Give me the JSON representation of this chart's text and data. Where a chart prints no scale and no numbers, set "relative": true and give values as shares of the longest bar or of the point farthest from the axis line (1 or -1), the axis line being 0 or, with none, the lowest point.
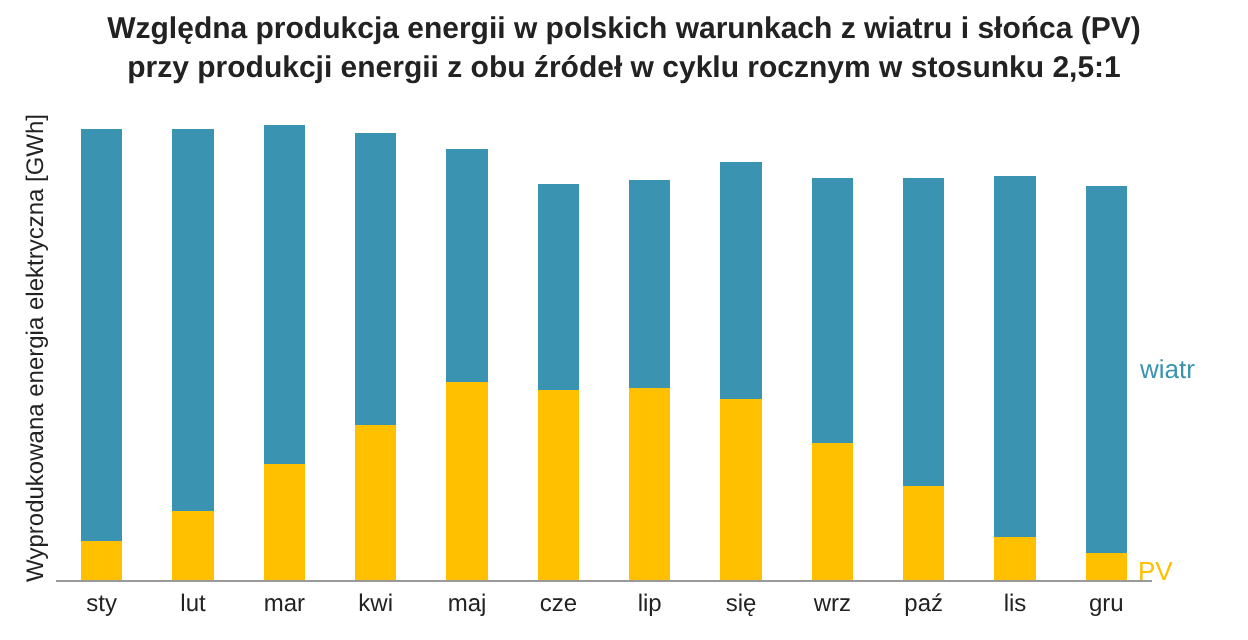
{
  "chart_data": {
    "type": "bar",
    "title": "Względna produkcja energii w polskich warunkach z wiatru i słońca (PV)\nprzy produkcji energii z obu źródeł w cyklu rocznym w stosunku 2,5:1",
    "ylabel": "Wyprodukowana energia elektryczna [GWh]",
    "relative": true,
    "stacked": true,
    "legend": false,
    "categories": [
      "sty",
      "lut",
      "mar",
      "kwi",
      "maj",
      "cze",
      "lip",
      "się",
      "wrz",
      "paź",
      "lis",
      "gru"
    ],
    "series": [
      {
        "name": "PV",
        "color": "#ffc000",
        "values": [
          0.086,
          0.151,
          0.254,
          0.341,
          0.435,
          0.418,
          0.422,
          0.397,
          0.302,
          0.207,
          0.095,
          0.06
        ]
      },
      {
        "name": "wiatr",
        "color": "#3a93b0",
        "values": [
          0.905,
          0.841,
          0.746,
          0.642,
          0.513,
          0.453,
          0.457,
          0.522,
          0.582,
          0.677,
          0.793,
          0.806
        ]
      }
    ]
  }
}
